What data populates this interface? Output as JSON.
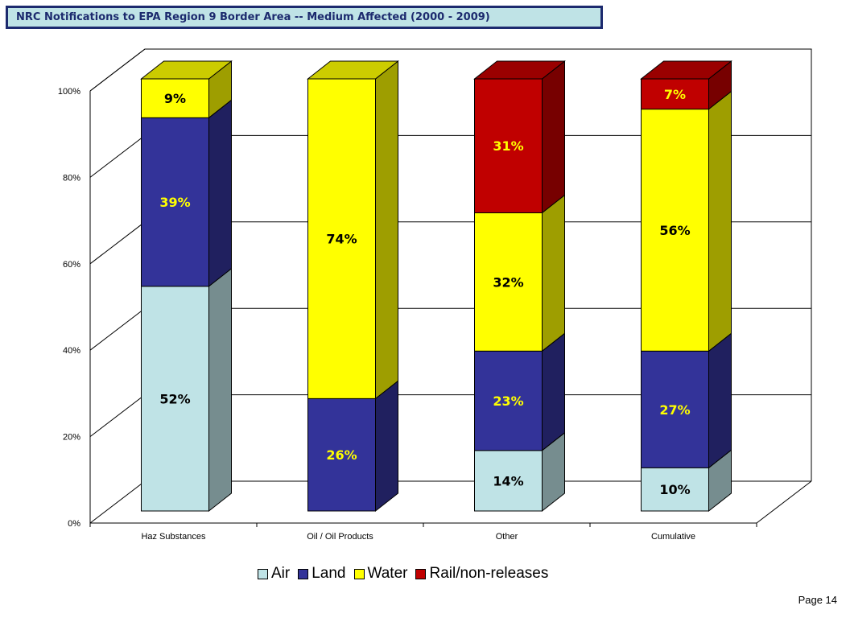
{
  "title": "NRC Notifications to EPA Region 9 Border Area   -- Medium Affected (2000 - 2009)",
  "page_label": "Page 14",
  "colors": {
    "Air": "#bfe3e6",
    "Land": "#333399",
    "Water": "#ffff00",
    "Rail/non-releases": "#c00000"
  },
  "chart_data": {
    "type": "bar",
    "stacked": true,
    "style": "3d-stacked-100-percent",
    "categories": [
      "Haz Substances",
      "Oil / Oil Products",
      "Other",
      "Cumulative"
    ],
    "series": [
      {
        "name": "Air",
        "values": [
          52,
          0,
          14,
          10
        ]
      },
      {
        "name": "Land",
        "values": [
          39,
          26,
          23,
          27
        ]
      },
      {
        "name": "Water",
        "values": [
          9,
          74,
          32,
          56
        ]
      },
      {
        "name": "Rail/non-releases",
        "values": [
          0,
          0,
          31,
          7
        ]
      }
    ],
    "value_labels": [
      [
        "52%",
        "",
        "14%",
        "10%"
      ],
      [
        "39%",
        "26%",
        "23%",
        "27%"
      ],
      [
        "9%",
        "74%",
        "32%",
        "56%"
      ],
      [
        "",
        "",
        "31%",
        "7%"
      ]
    ],
    "label_colors": [
      [
        "#000000",
        "",
        "#000000",
        "#000000"
      ],
      [
        "#ffff00",
        "#ffff00",
        "#ffff00",
        "#ffff00"
      ],
      [
        "#000000",
        "#000000",
        "#000000",
        "#000000"
      ],
      [
        "",
        "",
        "#ffff00",
        "#ffff00"
      ]
    ],
    "y_ticks": [
      "0%",
      "20%",
      "40%",
      "60%",
      "80%",
      "100%"
    ],
    "ylim": [
      0,
      100
    ],
    "grid": true,
    "legend": [
      "Air",
      "Land",
      "Water",
      "Rail/non-releases"
    ],
    "legend_position": "bottom"
  }
}
